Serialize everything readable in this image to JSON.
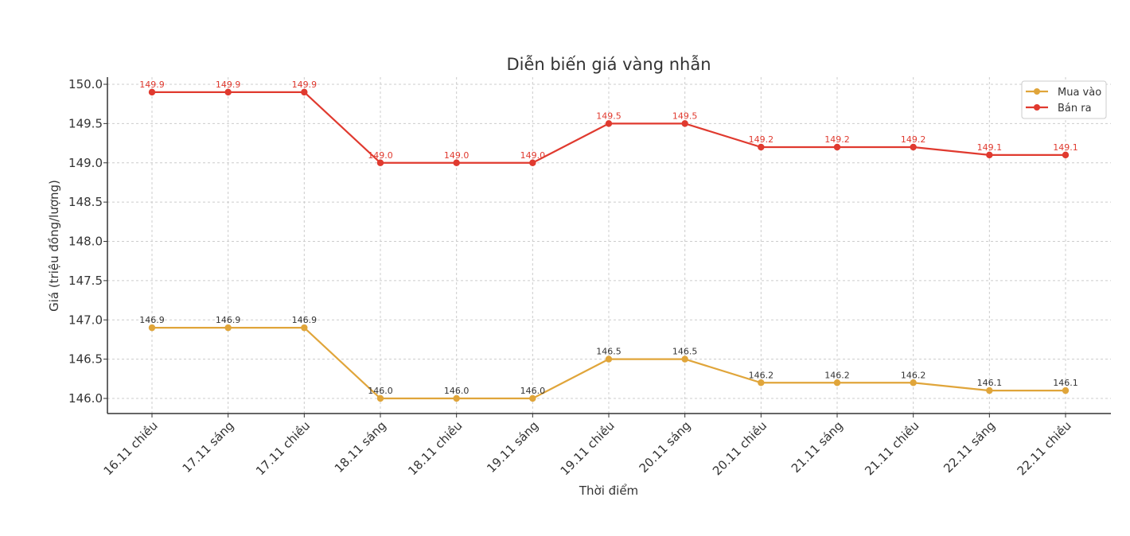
{
  "chart_data": {
    "type": "line",
    "title": "Diễn biến giá vàng nhẫn",
    "xlabel": "Thời điểm",
    "ylabel": "Giá (triệu đồng/lượng)",
    "categories": [
      "16.11 chiều",
      "17.11 sáng",
      "17.11 chiều",
      "18.11 sáng",
      "18.11 chiều",
      "19.11 sáng",
      "19.11 chiều",
      "20.11 sáng",
      "20.11 chiều",
      "21.11 sáng",
      "21.11 chiều",
      "22.11 sáng",
      "22.11 chiều"
    ],
    "series": [
      {
        "name": "Mua vào",
        "color": "#E0A53A",
        "label_color": "#333333",
        "values": [
          146.9,
          146.9,
          146.9,
          146.0,
          146.0,
          146.0,
          146.5,
          146.5,
          146.2,
          146.2,
          146.2,
          146.1,
          146.1
        ]
      },
      {
        "name": "Bán ra",
        "color": "#E03A2F",
        "label_color": "#E03A2F",
        "values": [
          149.9,
          149.9,
          149.9,
          149.0,
          149.0,
          149.0,
          149.5,
          149.5,
          149.2,
          149.2,
          149.2,
          149.1,
          149.1
        ]
      }
    ],
    "yticks": [
      "146.0",
      "146.5",
      "147.0",
      "147.5",
      "148.0",
      "148.5",
      "149.0",
      "149.5",
      "150.0"
    ],
    "ylim": [
      145.8,
      150.1
    ],
    "grid": true,
    "legend_position": "upper right"
  }
}
